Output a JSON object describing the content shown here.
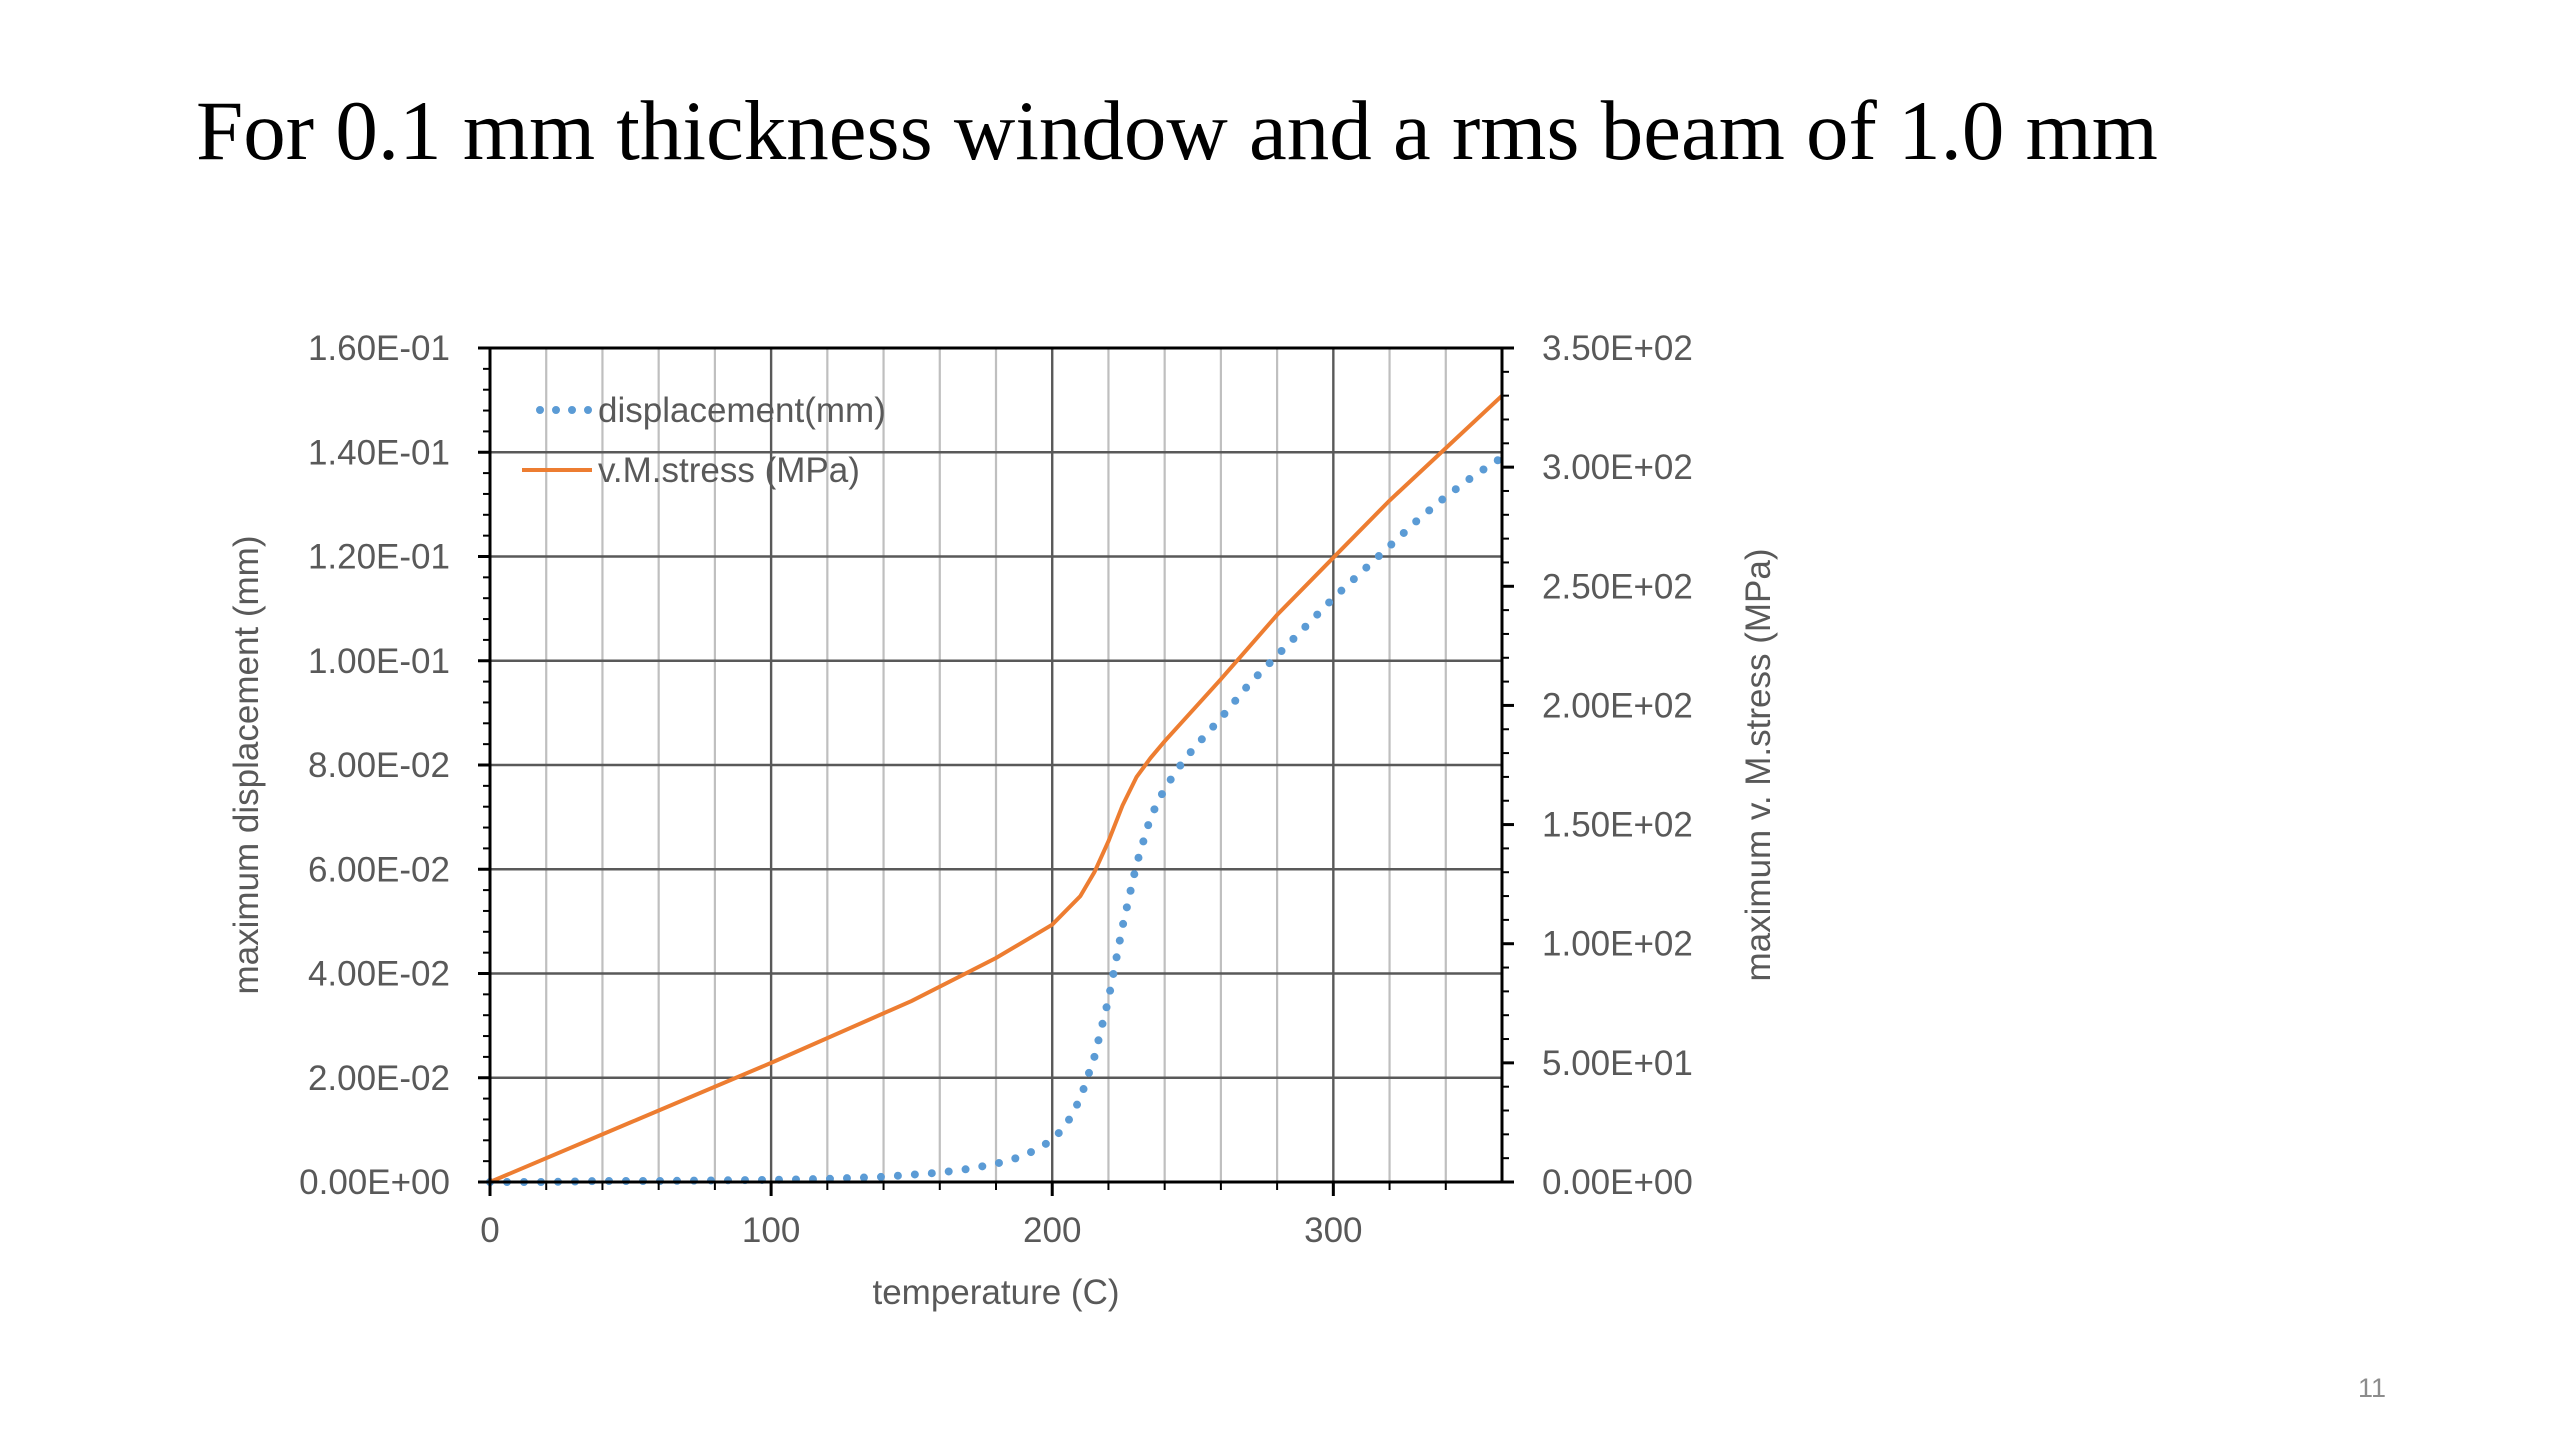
{
  "slide": {
    "title": "For 0.1 mm thickness window and a rms beam of 1.0 mm",
    "page_number": "11"
  },
  "chart_data": {
    "type": "line",
    "title": "",
    "xlabel": "temperature (C)",
    "ylabel": "maximum displacement (mm)",
    "y2label": "maximum v. M.stress (MPa)",
    "xlim": [
      0,
      360
    ],
    "ylim": [
      0,
      0.16
    ],
    "y2lim": [
      0,
      350
    ],
    "x_ticks": [
      0,
      100,
      200,
      300
    ],
    "x_tick_labels": [
      "0",
      "100",
      "200",
      "300"
    ],
    "x_minor_step": 20,
    "y_ticks": [
      0,
      0.02,
      0.04,
      0.06,
      0.08,
      0.1,
      0.12,
      0.14,
      0.16
    ],
    "y_tick_labels": [
      "0.00E+00",
      "2.00E-02",
      "4.00E-02",
      "6.00E-02",
      "8.00E-02",
      "1.00E-01",
      "1.20E-01",
      "1.40E-01",
      "1.60E-01"
    ],
    "y2_ticks": [
      0,
      50,
      100,
      150,
      200,
      250,
      300,
      350
    ],
    "y2_tick_labels": [
      "0.00E+00",
      "5.00E+01",
      "1.00E+02",
      "1.50E+02",
      "2.00E+02",
      "2.50E+02",
      "3.00E+02",
      "3.50E+02"
    ],
    "grid": true,
    "legend_position": "top-left",
    "colors": {
      "displacement": "#5b9bd5",
      "stress": "#ed7d31",
      "axis": "#000000",
      "minor_grid": "#bfbfbf",
      "major_grid": "#595959"
    },
    "series": [
      {
        "name": "displacement(mm)",
        "axis": "left",
        "style": "dotted",
        "x": [
          0,
          20,
          40,
          60,
          80,
          100,
          120,
          140,
          160,
          170,
          180,
          190,
          200,
          205,
          210,
          215,
          220,
          225,
          230,
          235,
          240,
          245,
          250,
          255,
          260,
          270,
          280,
          290,
          300,
          310,
          320,
          330,
          340,
          350,
          360
        ],
        "y": [
          0,
          0,
          0.0002,
          0.0002,
          0.0003,
          0.0004,
          0.0006,
          0.001,
          0.0018,
          0.0025,
          0.0035,
          0.005,
          0.008,
          0.011,
          0.016,
          0.024,
          0.035,
          0.049,
          0.061,
          0.07,
          0.0755,
          0.0795,
          0.083,
          0.086,
          0.089,
          0.0955,
          0.101,
          0.1065,
          0.112,
          0.117,
          0.122,
          0.127,
          0.1315,
          0.1355,
          0.139
        ]
      },
      {
        "name": "v.M.stress (MPa)",
        "axis": "right",
        "style": "solid",
        "x": [
          0,
          50,
          100,
          150,
          180,
          200,
          210,
          215,
          220,
          225,
          230,
          235,
          240,
          250,
          260,
          280,
          300,
          320,
          340,
          360
        ],
        "y": [
          0,
          25,
          50,
          76,
          94,
          108,
          120,
          130,
          143,
          158,
          170,
          178,
          185,
          198,
          211,
          238,
          262,
          286,
          308,
          330
        ]
      }
    ]
  }
}
